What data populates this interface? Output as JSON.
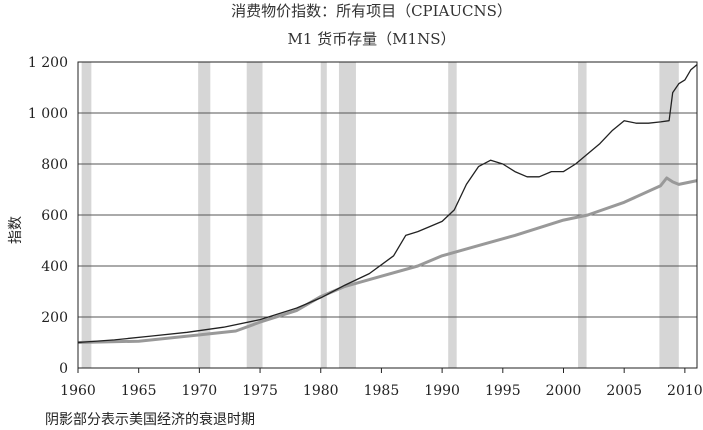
{
  "chart_data": {
    "type": "line",
    "title": "消费物价指数：所有项目（CPIAUCNS）",
    "subtitle": "M1 货币存量（M1NS）",
    "ylabel": "指数",
    "xlabel": "",
    "xlim": [
      1960,
      2011
    ],
    "ylim": [
      0,
      1200
    ],
    "x_ticks": [
      "1960",
      "1965",
      "1970",
      "1975",
      "1980",
      "1985",
      "1990",
      "1995",
      "2000",
      "2005",
      "2010"
    ],
    "y_ticks": [
      "0",
      "200",
      "400",
      "600",
      "800",
      "1 000",
      "1 200"
    ],
    "grid": "horizontal",
    "recessions": [
      [
        1960.3,
        1961.1
      ],
      [
        1969.9,
        1970.9
      ],
      [
        1973.9,
        1975.2
      ],
      [
        1980.0,
        1980.5
      ],
      [
        1981.5,
        1982.9
      ],
      [
        1990.5,
        1991.2
      ],
      [
        2001.2,
        2001.9
      ],
      [
        2007.9,
        2009.5
      ]
    ],
    "note": "阴影部分表示美国经济的衰退时期",
    "series": [
      {
        "name": "M1NS",
        "color": "#222222",
        "x": [
          1960,
          1963,
          1966,
          1969,
          1972,
          1975,
          1978,
          1980,
          1982,
          1984,
          1986,
          1987,
          1988,
          1989,
          1990,
          1991,
          1992,
          1993,
          1994,
          1995,
          1996,
          1997,
          1998,
          1999,
          2000,
          2001,
          2002,
          2003,
          2004,
          2005,
          2006,
          2007,
          2008,
          2008.7,
          2009,
          2009.5,
          2010,
          2010.5,
          2011
        ],
        "y": [
          100,
          110,
          125,
          140,
          160,
          190,
          235,
          275,
          325,
          370,
          440,
          520,
          535,
          555,
          575,
          620,
          720,
          790,
          815,
          800,
          770,
          750,
          750,
          770,
          770,
          800,
          840,
          880,
          930,
          970,
          960,
          960,
          965,
          970,
          1080,
          1115,
          1130,
          1170,
          1190
        ]
      },
      {
        "name": "CPIAUCNS",
        "color": "#999999",
        "x": [
          1960,
          1965,
          1970,
          1973,
          1975,
          1978,
          1980,
          1982,
          1985,
          1988,
          1990,
          1993,
          1996,
          2000,
          2002,
          2005,
          2008,
          2008.5,
          2009,
          2009.5,
          2010,
          2011
        ],
        "y": [
          100,
          105,
          130,
          145,
          180,
          225,
          280,
          320,
          360,
          400,
          440,
          480,
          520,
          580,
          600,
          650,
          715,
          745,
          730,
          720,
          725,
          735
        ]
      }
    ]
  }
}
